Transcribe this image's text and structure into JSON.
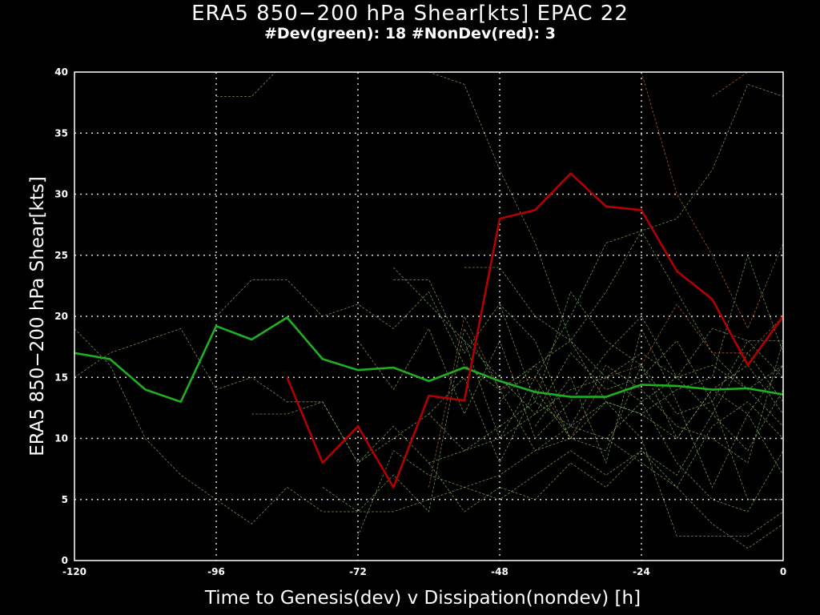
{
  "chart_data": {
    "type": "line",
    "title": "ERA5 850−200 hPa Shear[kts] EPAC 22",
    "subtitle": "#Dev(green): 18 #NonDev(red): 3",
    "xlabel": "Time to Genesis(dev) v Dissipation(nondev) [h]",
    "ylabel": "ERA5 850−200 hPa Shear[kts]",
    "xlim": [
      -120,
      0
    ],
    "ylim": [
      0,
      40
    ],
    "xticks": [
      -120,
      -96,
      -72,
      -48,
      -24,
      0
    ],
    "yticks": [
      0,
      5,
      10,
      15,
      20,
      25,
      30,
      35,
      40
    ],
    "grid": true,
    "x": [
      -120,
      -114,
      -108,
      -102,
      -96,
      -90,
      -84,
      -78,
      -72,
      -66,
      -60,
      -54,
      -48,
      -42,
      -36,
      -30,
      -24,
      -18,
      -12,
      -6,
      0
    ],
    "series": [
      {
        "color": "#1fb01f",
        "values": [
          17,
          16.5,
          14,
          13,
          19.2,
          18.1,
          19.9,
          16.5,
          15.6,
          15.8,
          14.7,
          15.8,
          14.7,
          13.8,
          13.4,
          13.4,
          14.4,
          14.3,
          14.0,
          14.1,
          13.6
        ]
      },
      {
        "color": "#b30000",
        "values": [
          null,
          null,
          null,
          null,
          null,
          null,
          15,
          8,
          11,
          6,
          13.5,
          13.1,
          28,
          28.7,
          31.7,
          29,
          28.7,
          23.7,
          21.4,
          16,
          20
        ]
      }
    ],
    "individual_tracks_green": [
      [
        19,
        16,
        10,
        7,
        5,
        3,
        6,
        4,
        4,
        4,
        5,
        6,
        7,
        9,
        10,
        10,
        8,
        6,
        3,
        1,
        3
      ],
      [
        15,
        17,
        18,
        19,
        14,
        15,
        13,
        13,
        8,
        11,
        8,
        9,
        10,
        12,
        14,
        15,
        13,
        8,
        5,
        4,
        9
      ],
      [
        null,
        null,
        null,
        null,
        38,
        38,
        41,
        null,
        null,
        null,
        null,
        null,
        null,
        null,
        null,
        null,
        null,
        null,
        null,
        null,
        null
      ],
      [
        null,
        null,
        null,
        null,
        20,
        23,
        23,
        20,
        21,
        19,
        22,
        16,
        14,
        16,
        18,
        15,
        17,
        15,
        16,
        14,
        16
      ],
      [
        null,
        null,
        null,
        null,
        null,
        12,
        12,
        13,
        8,
        10,
        12,
        9,
        11,
        13,
        11,
        13,
        12,
        10,
        14,
        16,
        12
      ],
      [
        null,
        null,
        null,
        null,
        null,
        null,
        null,
        6,
        4,
        7,
        4,
        19,
        14,
        9,
        11,
        10,
        13,
        15,
        12,
        9,
        14
      ],
      [
        null,
        null,
        null,
        null,
        null,
        null,
        null,
        null,
        2,
        9,
        7,
        6,
        5,
        7,
        9,
        7,
        9,
        7,
        12,
        17,
        13
      ],
      [
        null,
        null,
        null,
        null,
        null,
        null,
        null,
        null,
        18,
        14,
        19,
        12,
        18,
        10,
        13,
        17,
        20,
        15,
        19,
        18,
        18
      ],
      [
        null,
        null,
        null,
        null,
        null,
        null,
        null,
        null,
        null,
        24,
        21,
        18,
        10,
        15,
        20,
        26,
        27,
        22,
        17,
        14,
        11
      ],
      [
        null,
        null,
        null,
        null,
        null,
        null,
        null,
        null,
        null,
        23,
        23,
        17,
        21,
        13,
        22,
        18,
        16,
        12,
        13,
        18,
        15
      ],
      [
        null,
        null,
        null,
        null,
        null,
        null,
        null,
        null,
        null,
        null,
        12,
        15,
        8,
        14,
        10,
        9,
        16,
        10,
        14,
        12,
        16
      ],
      [
        null,
        null,
        null,
        null,
        null,
        null,
        null,
        null,
        null,
        null,
        8,
        4,
        6,
        5,
        8,
        6,
        9,
        6,
        11,
        13,
        10
      ],
      [
        null,
        null,
        null,
        null,
        null,
        null,
        null,
        null,
        null,
        null,
        null,
        18,
        15,
        12,
        17,
        14,
        15,
        18,
        13,
        5,
        5
      ],
      [
        null,
        null,
        null,
        null,
        null,
        null,
        null,
        null,
        null,
        null,
        null,
        24,
        24,
        20,
        18,
        13,
        12,
        14,
        15,
        25,
        17
      ],
      [
        null,
        null,
        null,
        null,
        null,
        null,
        null,
        null,
        null,
        null,
        null,
        null,
        21,
        18,
        11,
        16,
        14,
        11,
        10,
        8,
        18
      ],
      [
        null,
        null,
        null,
        null,
        null,
        null,
        null,
        null,
        null,
        null,
        40,
        39,
        32,
        26,
        18,
        22,
        27,
        28,
        32,
        39,
        38
      ],
      [
        null,
        null,
        null,
        null,
        null,
        null,
        null,
        null,
        null,
        null,
        null,
        null,
        13,
        16,
        10,
        13,
        10,
        2,
        2,
        2,
        4
      ],
      [
        null,
        null,
        null,
        null,
        null,
        null,
        null,
        null,
        null,
        null,
        null,
        null,
        null,
        11,
        15,
        8,
        19,
        13,
        6,
        12,
        7
      ]
    ],
    "individual_tracks_red": [
      [
        null,
        null,
        null,
        null,
        null,
        null,
        null,
        null,
        null,
        null,
        null,
        null,
        null,
        null,
        null,
        null,
        40,
        30,
        25,
        19,
        26
      ],
      [
        null,
        null,
        null,
        null,
        null,
        null,
        null,
        null,
        null,
        null,
        6,
        20,
        14,
        15,
        10,
        15,
        16,
        21,
        17,
        17,
        20
      ],
      [
        null,
        null,
        null,
        null,
        null,
        null,
        null,
        null,
        null,
        null,
        null,
        null,
        null,
        null,
        null,
        null,
        null,
        null,
        38,
        40,
        41
      ]
    ]
  }
}
